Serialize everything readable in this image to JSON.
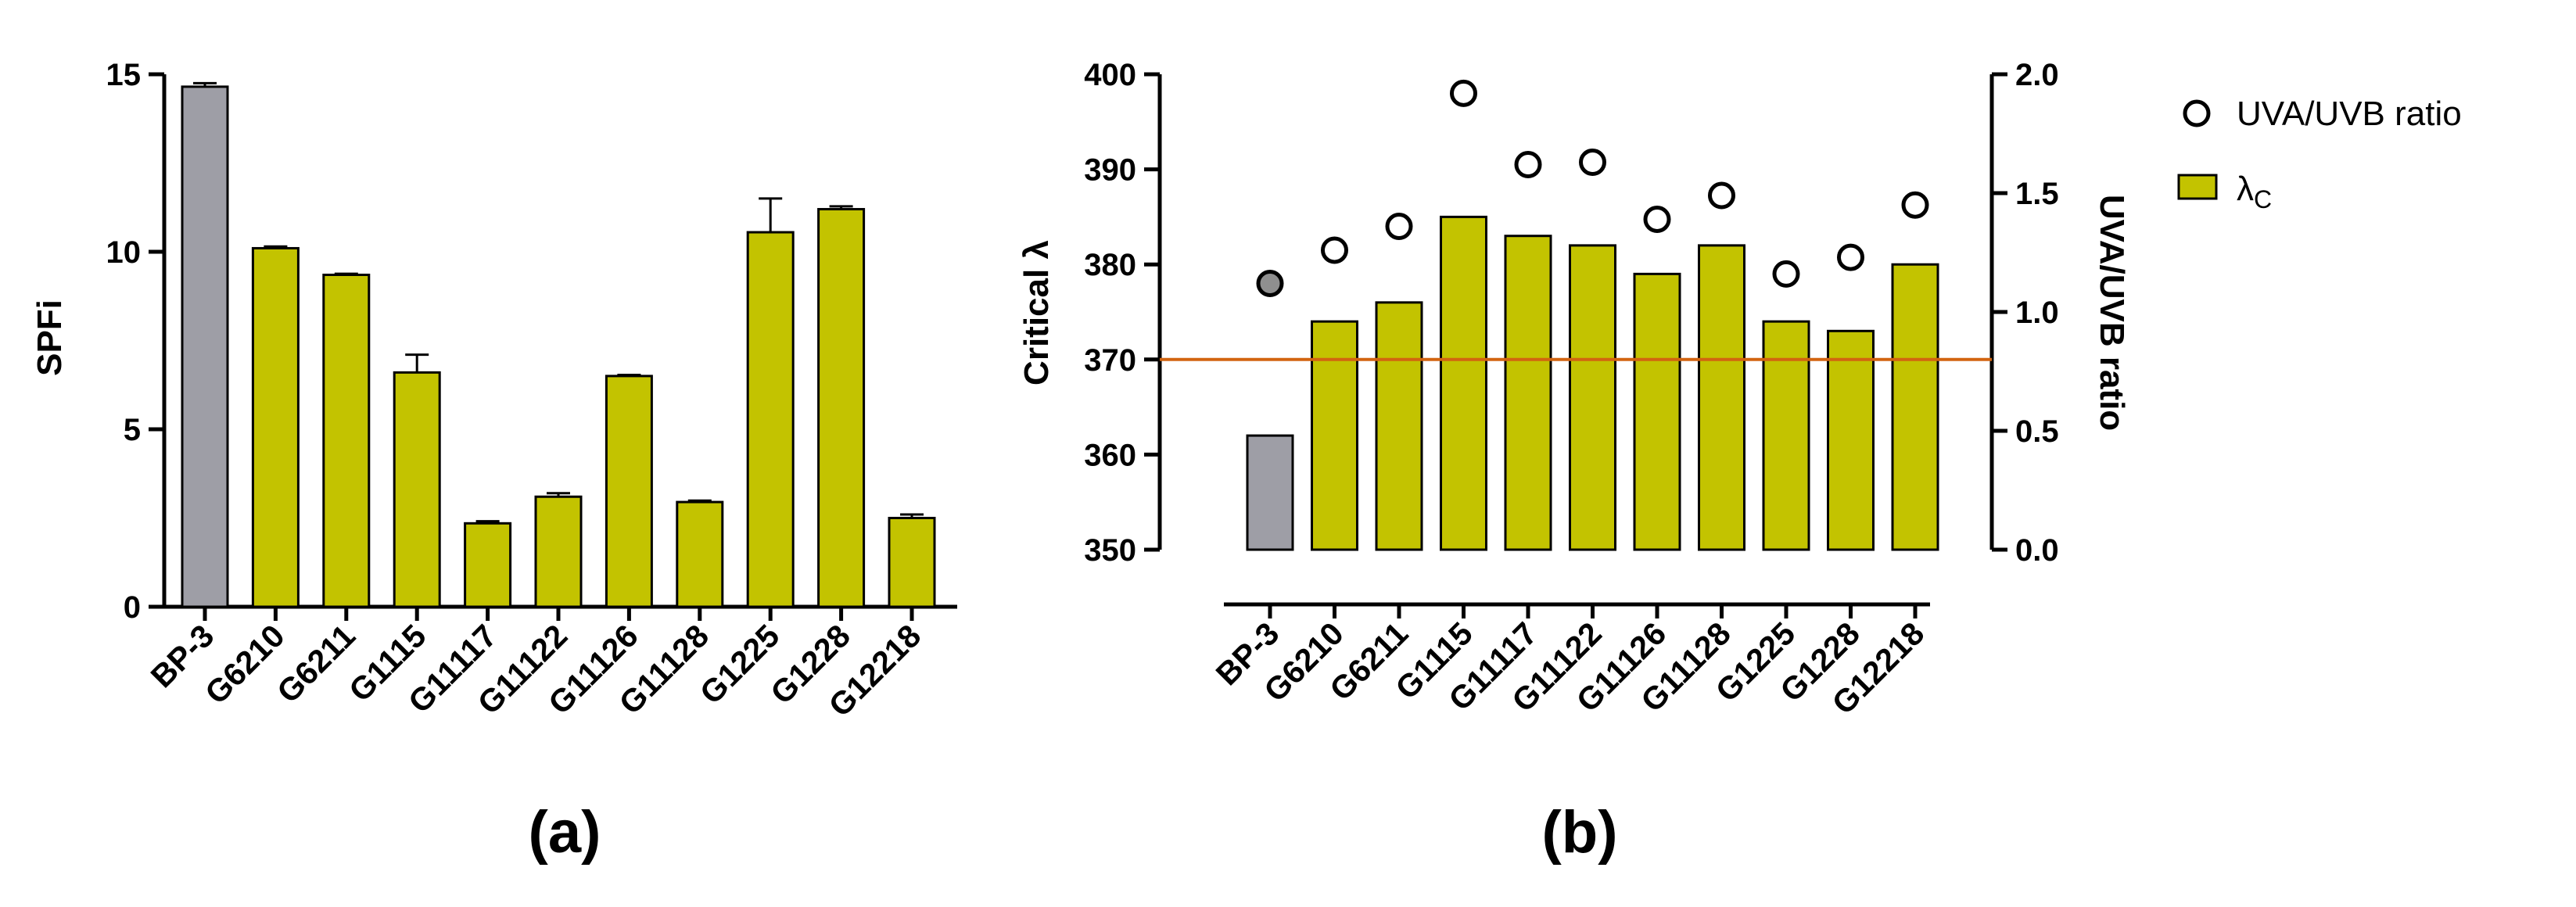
{
  "colors": {
    "bp3_gray": "#9e9ea6",
    "bar_olive": "#c3c300",
    "threshold_orange": "#d26410",
    "axis": "#000000",
    "marker_fill_bp3": "#8f8f8f",
    "marker_fill": "#ffffff"
  },
  "chart_data": [
    {
      "type": "bar",
      "panel_label": "(a)",
      "title": "",
      "xlabel": "",
      "ylabel": "SPFi",
      "ylim": [
        0,
        15
      ],
      "yticks": [
        "0",
        "5",
        "10",
        "15"
      ],
      "categories": [
        "BP-3",
        "G6210",
        "G6211",
        "G1115",
        "G11117",
        "G11122",
        "G11126",
        "G11128",
        "G1225",
        "G1228",
        "G12218"
      ],
      "values": [
        14.65,
        10.1,
        9.35,
        6.6,
        2.35,
        3.1,
        6.5,
        2.95,
        10.55,
        11.2,
        2.5
      ],
      "errors": [
        0.1,
        0.05,
        0.03,
        0.5,
        0.06,
        0.1,
        0.03,
        0.04,
        0.95,
        0.08,
        0.1
      ],
      "grid": false
    },
    {
      "type": "bar",
      "panel_label": "(b)",
      "title": "",
      "xlabel": "",
      "ylabel": "Critical λ",
      "ylabel_right": "UVA/UVB ratio",
      "ylim": [
        350,
        400
      ],
      "yticks": [
        "350",
        "360",
        "370",
        "380",
        "390",
        "400"
      ],
      "ylim_right": [
        0,
        2
      ],
      "yticks_right": [
        "0.0",
        "0.5",
        "1.0",
        "1.5",
        "2.0"
      ],
      "categories": [
        "BP-3",
        "G6210",
        "G6211",
        "G1115",
        "G11117",
        "G11122",
        "G11126",
        "G11128",
        "G1225",
        "G1228",
        "G12218"
      ],
      "series": [
        {
          "name": "λc",
          "kind": "bar",
          "axis": "left",
          "values": [
            362,
            374,
            376,
            385,
            383,
            382,
            379,
            382,
            374,
            373,
            380
          ]
        },
        {
          "name": "UVA/UVB ratio",
          "kind": "scatter",
          "axis": "right",
          "values": [
            1.12,
            1.26,
            1.36,
            1.92,
            1.62,
            1.63,
            1.39,
            1.49,
            1.16,
            1.23,
            1.45
          ]
        }
      ],
      "reference_line": {
        "axis": "left",
        "value": 370
      },
      "legend": {
        "position": "top-right",
        "entries": [
          {
            "marker": "circle",
            "label": "UVA/UVB ratio"
          },
          {
            "marker": "bar",
            "label_main": "λ",
            "label_sub": "C"
          }
        ]
      },
      "grid": false
    }
  ]
}
